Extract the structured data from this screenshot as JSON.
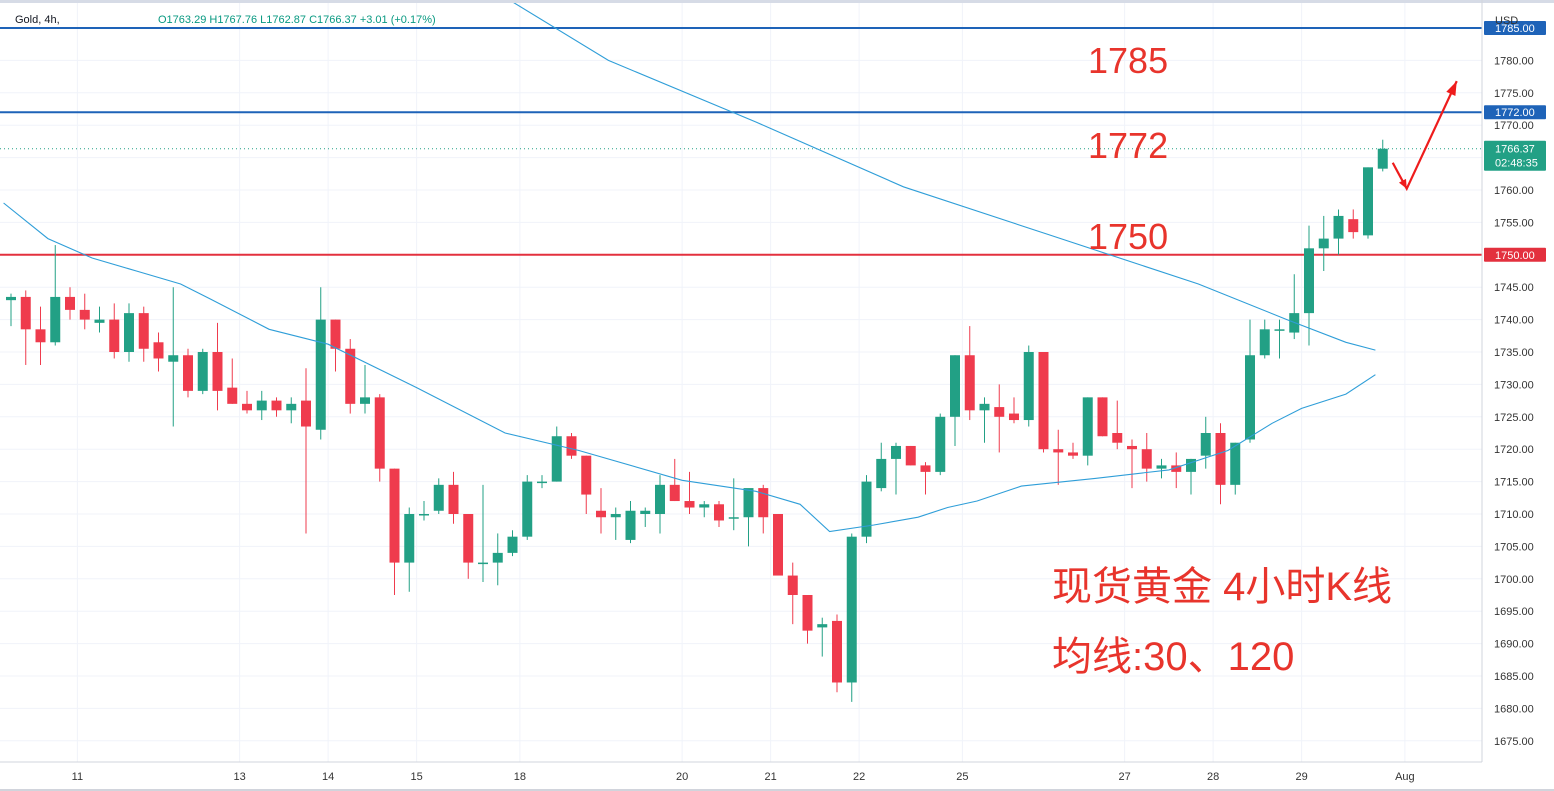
{
  "header": {
    "symbol": "Gold, 4h,",
    "ohlc": "O1763.29  H1767.76  L1762.87  C1766.37  +3.01 (+0.17%)"
  },
  "currency_label": "USD",
  "price_badge": {
    "price": "1766.37",
    "countdown": "02:48:35"
  },
  "annotations": {
    "level_1785": "1785",
    "level_1772": "1772",
    "level_1750": "1750",
    "note_line1": "现货黄金 4小时K线",
    "note_line2": "均线:30、120"
  },
  "colors": {
    "up": "#22a085",
    "down": "#ef3b4d",
    "blue_line": "#1e63b8",
    "red_line": "#e3303e",
    "ma": "#2f9ed8",
    "annotation": "#e8342c",
    "last_price": "#22a085"
  },
  "chart_data": {
    "type": "candlestick",
    "title": "",
    "y_axis": {
      "unit": "USD",
      "range": [
        1671,
        1790
      ],
      "ticks": [
        1675,
        1680,
        1685,
        1690,
        1695,
        1700,
        1705,
        1710,
        1715,
        1720,
        1725,
        1730,
        1735,
        1740,
        1745,
        1750,
        1755,
        1760,
        1765,
        1770,
        1775,
        1780,
        1785
      ],
      "tick_labels": [
        "1675.00",
        "1680.00",
        "1685.00",
        "1690.00",
        "1695.00",
        "1700.00",
        "1705.00",
        "1710.00",
        "1715.00",
        "1720.00",
        "1725.00",
        "1730.00",
        "1735.00",
        "1740.00",
        "1745.00",
        "1750.00",
        "1755.00",
        "1760.00",
        "1765.00",
        "1770.00",
        "1775.00",
        "1780.00",
        "1785.00"
      ]
    },
    "x_axis": {
      "labels": [
        {
          "text": "11",
          "index": 4.5
        },
        {
          "text": "13",
          "index": 15.5
        },
        {
          "text": "14",
          "index": 21.5
        },
        {
          "text": "15",
          "index": 27.5
        },
        {
          "text": "18",
          "index": 34.5
        },
        {
          "text": "20",
          "index": 45.5
        },
        {
          "text": "21",
          "index": 51.5
        },
        {
          "text": "22",
          "index": 57.5
        },
        {
          "text": "25",
          "index": 64.5
        },
        {
          "text": "27",
          "index": 75.5
        },
        {
          "text": "28",
          "index": 81.5
        },
        {
          "text": "29",
          "index": 87.5
        },
        {
          "text": "Aug",
          "index": 94.5
        }
      ]
    },
    "horizontal_lines": [
      {
        "price": 1785.0,
        "label": "1785.00",
        "color": "#1e63b8"
      },
      {
        "price": 1772.0,
        "label": "1772.00",
        "color": "#1e63b8"
      },
      {
        "price": 1750.0,
        "label": "1750.00",
        "color": "#e3303e"
      }
    ],
    "last_price": 1766.37,
    "candles": [
      [
        1743.0,
        1744.0,
        1739.0,
        1743.5
      ],
      [
        1743.5,
        1744.5,
        1733.0,
        1738.5
      ],
      [
        1738.5,
        1742.0,
        1733.0,
        1736.5
      ],
      [
        1736.5,
        1751.5,
        1736.0,
        1743.5
      ],
      [
        1743.5,
        1745.0,
        1740.0,
        1741.5
      ],
      [
        1741.5,
        1744.0,
        1738.5,
        1740.0
      ],
      [
        1739.5,
        1742.0,
        1738.0,
        1740.0
      ],
      [
        1740.0,
        1742.5,
        1734.0,
        1735.0
      ],
      [
        1735.0,
        1742.5,
        1733.5,
        1741.0
      ],
      [
        1741.0,
        1742.0,
        1733.5,
        1735.5
      ],
      [
        1736.5,
        1738.0,
        1732.0,
        1734.0
      ],
      [
        1733.5,
        1745.0,
        1723.5,
        1734.5
      ],
      [
        1734.5,
        1735.5,
        1728.0,
        1729.0
      ],
      [
        1729.0,
        1735.5,
        1728.5,
        1735.0
      ],
      [
        1735.0,
        1739.5,
        1726.0,
        1729.0
      ],
      [
        1729.5,
        1734.0,
        1727.0,
        1727.0
      ],
      [
        1727.0,
        1729.0,
        1725.5,
        1726.0
      ],
      [
        1726.0,
        1729.0,
        1724.5,
        1727.5
      ],
      [
        1727.5,
        1728.0,
        1725.0,
        1726.0
      ],
      [
        1726.0,
        1728.0,
        1724.0,
        1727.0
      ],
      [
        1727.5,
        1732.5,
        1707.0,
        1723.5
      ],
      [
        1723.0,
        1745.0,
        1721.5,
        1740.0
      ],
      [
        1740.0,
        1740.0,
        1732.0,
        1735.5
      ],
      [
        1735.5,
        1737.0,
        1725.5,
        1727.0
      ],
      [
        1727.0,
        1733.0,
        1725.5,
        1728.0
      ],
      [
        1728.0,
        1728.5,
        1715.0,
        1717.0
      ],
      [
        1717.0,
        1717.0,
        1697.5,
        1702.5
      ],
      [
        1702.5,
        1711.0,
        1698.0,
        1710.0
      ],
      [
        1710.0,
        1712.0,
        1709.0,
        1710.0
      ],
      [
        1710.5,
        1715.5,
        1710.0,
        1714.5
      ],
      [
        1714.5,
        1716.5,
        1708.5,
        1710.0
      ],
      [
        1710.0,
        1710.0,
        1700.0,
        1702.5
      ],
      [
        1702.5,
        1714.5,
        1699.5,
        1702.5
      ],
      [
        1702.5,
        1707.0,
        1699.0,
        1704.0
      ],
      [
        1704.0,
        1707.5,
        1703.5,
        1706.5
      ],
      [
        1706.5,
        1716.0,
        1706.0,
        1715.0
      ],
      [
        1715.0,
        1716.0,
        1714.0,
        1715.0
      ],
      [
        1715.0,
        1723.5,
        1715.0,
        1722.0
      ],
      [
        1722.0,
        1722.5,
        1718.5,
        1719.0
      ],
      [
        1719.0,
        1719.0,
        1710.0,
        1713.0
      ],
      [
        1710.5,
        1714.0,
        1707.0,
        1709.5
      ],
      [
        1709.5,
        1711.0,
        1706.0,
        1710.0
      ],
      [
        1706.0,
        1712.0,
        1705.5,
        1710.5
      ],
      [
        1710.0,
        1711.0,
        1708.0,
        1710.5
      ],
      [
        1710.0,
        1716.0,
        1707.0,
        1714.5
      ],
      [
        1714.5,
        1718.5,
        1712.0,
        1712.0
      ],
      [
        1712.0,
        1716.5,
        1710.0,
        1711.0
      ],
      [
        1711.0,
        1712.0,
        1709.5,
        1711.5
      ],
      [
        1711.5,
        1712.0,
        1708.0,
        1709.0
      ],
      [
        1709.5,
        1715.5,
        1707.5,
        1709.5
      ],
      [
        1709.5,
        1713.0,
        1705.0,
        1714.0
      ],
      [
        1714.0,
        1714.5,
        1707.0,
        1709.5
      ],
      [
        1710.0,
        1710.0,
        1700.5,
        1700.5
      ],
      [
        1700.5,
        1702.5,
        1693.0,
        1697.5
      ],
      [
        1697.5,
        1697.5,
        1690.0,
        1692.0
      ],
      [
        1692.5,
        1694.0,
        1688.0,
        1693.0
      ],
      [
        1693.5,
        1694.5,
        1682.5,
        1684.0
      ],
      [
        1684.0,
        1707.0,
        1681.0,
        1706.5
      ],
      [
        1706.5,
        1716.0,
        1705.5,
        1715.0
      ],
      [
        1714.0,
        1721.0,
        1713.5,
        1718.5
      ],
      [
        1718.5,
        1721.0,
        1713.0,
        1720.5
      ],
      [
        1720.5,
        1720.5,
        1717.5,
        1717.5
      ],
      [
        1717.5,
        1718.0,
        1713.0,
        1716.5
      ],
      [
        1716.5,
        1725.5,
        1716.0,
        1725.0
      ],
      [
        1725.0,
        1734.5,
        1720.5,
        1734.5
      ],
      [
        1734.5,
        1739.0,
        1724.5,
        1726.0
      ],
      [
        1726.0,
        1728.0,
        1721.0,
        1727.0
      ],
      [
        1726.5,
        1730.0,
        1719.5,
        1725.0
      ],
      [
        1725.5,
        1728.0,
        1724.0,
        1724.5
      ],
      [
        1724.5,
        1736.0,
        1723.5,
        1735.0
      ],
      [
        1735.0,
        1735.0,
        1719.5,
        1720.0
      ],
      [
        1720.0,
        1723.0,
        1714.5,
        1719.5
      ],
      [
        1719.5,
        1721.0,
        1718.5,
        1719.0
      ],
      [
        1719.0,
        1728.0,
        1717.5,
        1728.0
      ],
      [
        1728.0,
        1728.0,
        1722.0,
        1722.0
      ],
      [
        1722.5,
        1727.5,
        1720.0,
        1721.0
      ],
      [
        1720.5,
        1721.5,
        1714.0,
        1720.0
      ],
      [
        1720.0,
        1722.5,
        1715.0,
        1717.0
      ],
      [
        1717.0,
        1718.5,
        1715.5,
        1717.5
      ],
      [
        1717.5,
        1719.5,
        1714.0,
        1716.5
      ],
      [
        1716.5,
        1718.5,
        1713.0,
        1718.5
      ],
      [
        1719.0,
        1725.0,
        1717.0,
        1722.5
      ],
      [
        1722.5,
        1724.0,
        1711.5,
        1714.5
      ],
      [
        1714.5,
        1721.0,
        1713.0,
        1721.0
      ],
      [
        1721.5,
        1740.0,
        1721.0,
        1734.5
      ],
      [
        1734.5,
        1740.0,
        1734.0,
        1738.5
      ],
      [
        1738.5,
        1740.0,
        1734.0,
        1738.5
      ],
      [
        1738.0,
        1747.0,
        1737.0,
        1741.0
      ],
      [
        1741.0,
        1754.5,
        1736.0,
        1751.0
      ],
      [
        1751.0,
        1756.0,
        1747.5,
        1752.5
      ],
      [
        1752.5,
        1757.0,
        1750.0,
        1756.0
      ],
      [
        1755.5,
        1757.0,
        1752.5,
        1753.5
      ],
      [
        1753.0,
        1763.5,
        1752.5,
        1763.5
      ],
      [
        1763.29,
        1767.76,
        1762.87,
        1766.37
      ]
    ],
    "ma_30": [
      [
        13.5,
        1743.2
      ],
      [
        17.5,
        1738.5
      ],
      [
        21.5,
        1736.2
      ],
      [
        27.5,
        1729.5
      ],
      [
        33.5,
        1722.5
      ],
      [
        38.5,
        1719.8
      ],
      [
        45.5,
        1715.2
      ],
      [
        50.5,
        1713.5
      ],
      [
        53.5,
        1711.5
      ],
      [
        55.5,
        1707.3
      ],
      [
        58.5,
        1708.3
      ],
      [
        61.5,
        1709.5
      ],
      [
        63.5,
        1711.0
      ],
      [
        65.5,
        1712.0
      ],
      [
        68.5,
        1714.3
      ],
      [
        73.5,
        1715.5
      ],
      [
        78.5,
        1716.8
      ],
      [
        82.5,
        1719.8
      ],
      [
        85.5,
        1724.0
      ],
      [
        87.5,
        1726.3
      ],
      [
        90.5,
        1728.5
      ],
      [
        92.5,
        1731.5
      ]
    ],
    "ma_120": [
      [
        31.5,
        1792.5
      ],
      [
        40.5,
        1780.0
      ],
      [
        50.5,
        1770.5
      ],
      [
        60.5,
        1760.5
      ],
      [
        70.5,
        1753.0
      ],
      [
        80.5,
        1745.5
      ],
      [
        86.5,
        1740.0
      ],
      [
        90.5,
        1736.5
      ],
      [
        92.5,
        1735.3
      ]
    ],
    "arrow_path": [
      [
        1.5,
        1764.2
      ],
      [
        1.5,
        1760.5
      ],
      [
        1.5,
        1776.5
      ]
    ]
  }
}
